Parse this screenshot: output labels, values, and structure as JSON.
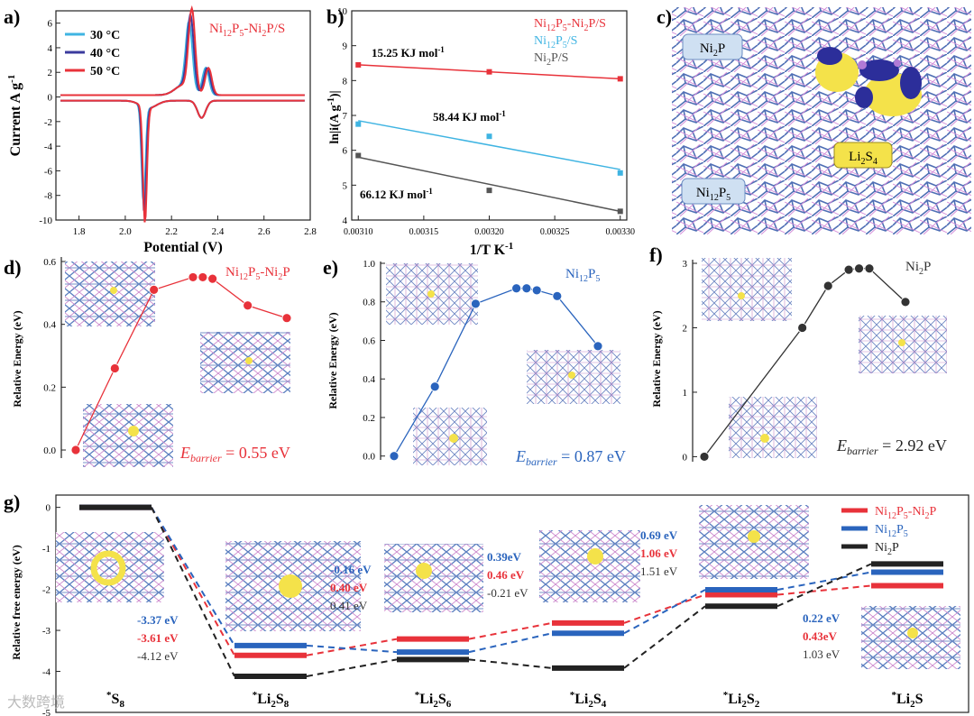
{
  "colors": {
    "red": "#e8323a",
    "blue": "#2a64bd",
    "cyan": "#3fb4e2",
    "gray": "#555555",
    "black": "#222222",
    "darkblue": "#3b3b9e",
    "pink": "#e8506a",
    "panel_bg": "#cfe0f2",
    "yellow": "#f4e24a"
  },
  "watermark": "大数跨境",
  "chart_data": [
    {
      "panel": "a)",
      "type": "line",
      "title": "Ni12P5-Ni2P/S",
      "title_parts": [
        "Ni",
        "12",
        "P",
        "5",
        "-Ni",
        "2",
        "P/S"
      ],
      "xlabel": "Potential (V)",
      "ylabel": "Current A g",
      "ylabel_sup": "-1",
      "xlim": [
        1.7,
        2.8
      ],
      "ylim": [
        -10,
        7
      ],
      "xticks": [
        "1.8",
        "2.0",
        "2.2",
        "2.4",
        "2.6",
        "2.8"
      ],
      "yticks": [
        "-10",
        "-8",
        "-6",
        "-4",
        "-2",
        "0",
        "2",
        "4",
        "6"
      ],
      "legend": [
        "30 °C",
        "40 °C",
        "50 °C"
      ],
      "series": [
        {
          "name": "30 °C",
          "color": "#3fb4e2",
          "peak_ox": 5.6,
          "peak_red": -7.8,
          "shift": -0.012
        },
        {
          "name": "40 °C",
          "color": "#3b3b9e",
          "peak_ox": 6.2,
          "peak_red": -8.6,
          "shift": -0.006
        },
        {
          "name": "50 °C",
          "color": "#e8323a",
          "peak_ox": 6.8,
          "peak_red": -9.4,
          "shift": 0.0
        }
      ]
    },
    {
      "panel": "b)",
      "type": "scatter",
      "xlabel": "1/T K",
      "xlabel_sup": "-1",
      "ylabel": "ln|i(A g",
      "ylabel_sup": "-1",
      "ylabel_tail": ")|",
      "xlim": [
        0.003095,
        0.003305
      ],
      "ylim": [
        4,
        10
      ],
      "xticks": [
        "0.00310",
        "0.00315",
        "0.00320",
        "0.00325",
        "0.00330"
      ],
      "yticks": [
        "4",
        "5",
        "6",
        "7",
        "8",
        "9",
        "10"
      ],
      "legend": [
        "Ni12P5-Ni2P/S",
        "Ni12P5/S",
        "Ni2P/S"
      ],
      "series": [
        {
          "name": "Ni12P5-Ni2P/S",
          "color": "#e8323a",
          "x": [
            0.0031,
            0.0032,
            0.0033
          ],
          "y": [
            8.45,
            8.25,
            8.05
          ],
          "fit": [
            8.45,
            8.05
          ],
          "annotation": "15.25 KJ mol",
          "annotation_sup": "-1"
        },
        {
          "name": "Ni12P5/S",
          "color": "#3fb4e2",
          "x": [
            0.0031,
            0.0032,
            0.0033
          ],
          "y": [
            6.75,
            6.4,
            5.35
          ],
          "fit": [
            6.85,
            5.45
          ],
          "annotation": "58.44 KJ mol",
          "annotation_sup": "-1"
        },
        {
          "name": "Ni2P/S",
          "color": "#555555",
          "x": [
            0.0031,
            0.0032,
            0.0033
          ],
          "y": [
            5.85,
            4.85,
            4.25
          ],
          "fit": [
            5.8,
            4.25
          ],
          "annotation": "66.12 KJ mol",
          "annotation_sup": "-1"
        }
      ]
    },
    {
      "panel": "c)",
      "type": "other",
      "labels": [
        "Ni2P",
        "Li2S4",
        "Ni12P5"
      ]
    },
    {
      "panel": "d)",
      "type": "line",
      "ylabel": "Relative Energy (eV)",
      "ylim": [
        -0.02,
        0.6
      ],
      "yticks": [
        "0.0",
        "0.2",
        "0.4",
        "0.6"
      ],
      "title": "Ni12P5-Ni2P",
      "color": "#e8323a",
      "x": [
        0,
        1,
        2,
        3,
        3.25,
        3.5,
        4.4,
        5.4
      ],
      "values": [
        0.0,
        0.26,
        0.51,
        0.55,
        0.55,
        0.545,
        0.46,
        0.42
      ],
      "barrier_label": "E",
      "barrier_sub": "barrier",
      "barrier_value": " = 0.55 eV"
    },
    {
      "panel": "e)",
      "type": "line",
      "ylabel": "Relative Energy (eV)",
      "ylim": [
        -0.02,
        1.0
      ],
      "yticks": [
        "0.0",
        "0.2",
        "0.4",
        "0.6",
        "0.8",
        "1.0"
      ],
      "title": "Ni12P5",
      "color": "#2a64bd",
      "x": [
        0,
        1,
        2,
        3,
        3.25,
        3.5,
        4,
        5
      ],
      "values": [
        0.0,
        0.36,
        0.79,
        0.87,
        0.87,
        0.86,
        0.83,
        0.57
      ],
      "barrier_label": "E",
      "barrier_sub": "barrier",
      "barrier_value": " = 0.87 eV"
    },
    {
      "panel": "f)",
      "type": "line",
      "ylabel": "Relative Energy (eV)",
      "ylim": [
        -0.05,
        3.0
      ],
      "yticks": [
        "0",
        "1",
        "2",
        "3"
      ],
      "title": "Ni2P",
      "color": "#333333",
      "x": [
        0,
        1.9,
        2.4,
        2.8,
        3.0,
        3.2,
        3.9
      ],
      "values": [
        0.0,
        2.0,
        2.65,
        2.9,
        2.92,
        2.92,
        2.4
      ],
      "barrier_label": "E",
      "barrier_sub": "barrier",
      "barrier_value": " = 2.92 eV"
    },
    {
      "panel": "g)",
      "type": "line",
      "ylabel": "Relative free energy (eV)",
      "ylim": [
        -5,
        0.3
      ],
      "yticks": [
        "0",
        "-1",
        "-2",
        "-3",
        "-4",
        "-5"
      ],
      "categories": [
        "S8",
        "Li2S8",
        "Li2S6",
        "Li2S4",
        "Li2S2",
        "Li2S"
      ],
      "category_labels": [
        {
          "pre": "*",
          "main": "S",
          "sub": "8",
          "tail": ""
        },
        {
          "pre": "*",
          "main": "Li",
          "sub": "2",
          "tail": "S",
          "sub2": "8"
        },
        {
          "pre": "*",
          "main": "Li",
          "sub": "2",
          "tail": "S",
          "sub2": "6"
        },
        {
          "pre": "*",
          "main": "Li",
          "sub": "2",
          "tail": "S",
          "sub2": "4"
        },
        {
          "pre": "*",
          "main": "Li",
          "sub": "2",
          "tail": "S",
          "sub2": "2"
        },
        {
          "pre": "*",
          "main": "Li",
          "sub": "2",
          "tail": "S",
          "sub2": ""
        }
      ],
      "legend": [
        "Ni12P5-Ni2P",
        "Ni12P5",
        "Ni2P"
      ],
      "series": [
        {
          "name": "Ni12P5-Ni2P",
          "color": "#e8323a",
          "values": [
            0,
            -3.61,
            -3.21,
            -2.82,
            -2.13,
            -1.91
          ]
        },
        {
          "name": "Ni12P5",
          "color": "#2a64bd",
          "values": [
            0,
            -3.37,
            -3.53,
            -3.07,
            -2.01,
            -1.58
          ]
        },
        {
          "name": "Ni2P",
          "color": "#222222",
          "values": [
            0,
            -4.12,
            -3.71,
            -3.92,
            -2.41,
            -1.38
          ]
        }
      ],
      "step_labels": [
        [
          "-3.37 eV",
          "-3.61 eV",
          "-4.12 eV"
        ],
        [
          "-0.16 eV",
          "0.40 eV",
          "0.41 eV"
        ],
        [
          "0.39eV",
          "0.46 eV",
          "-0.21 eV"
        ],
        [
          "0.69 eV",
          "1.06 eV",
          "1.51 eV"
        ],
        [
          "0.22 eV",
          "0.43eV",
          "1.03 eV"
        ]
      ],
      "step_label_colors": [
        "#2a64bd",
        "#e8323a",
        "#333333"
      ]
    }
  ]
}
